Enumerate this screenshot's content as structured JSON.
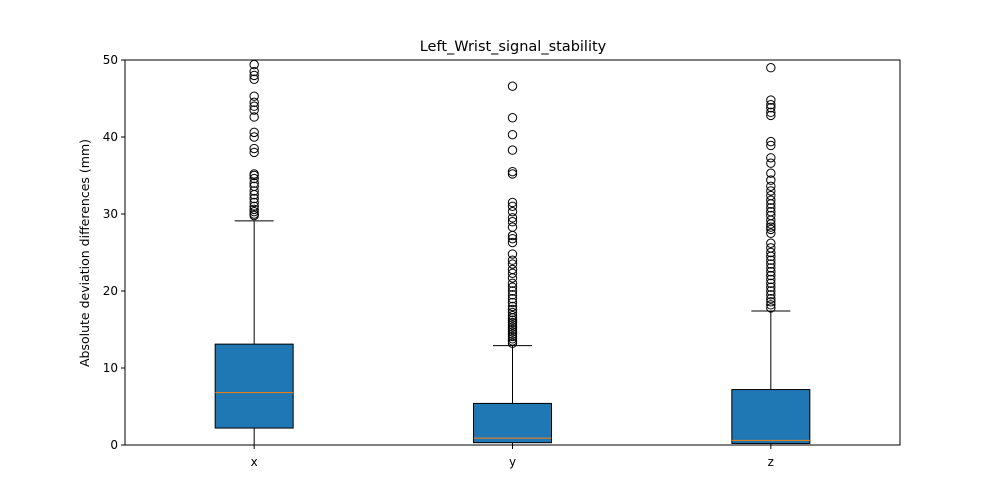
{
  "chart_data": {
    "type": "boxplot",
    "title": "Left_Wrist_signal_stability",
    "xlabel": "",
    "ylabel": "Absolute deviation differences (mm)",
    "ylim": [
      0,
      50
    ],
    "yticks": [
      0,
      10,
      20,
      30,
      40,
      50
    ],
    "grid": false,
    "legend": "none",
    "box_color": "#1f77b4",
    "median_color": "#ff7f0e",
    "categories": [
      "x",
      "y",
      "z"
    ],
    "boxes": [
      {
        "label": "x",
        "whisker_low": 0.0,
        "q1": 2.2,
        "median": 6.8,
        "q3": 13.1,
        "whisker_high": 29.1,
        "outliers": [
          29.8,
          30.0,
          30.3,
          30.6,
          31.0,
          31.5,
          32.0,
          32.5,
          33.0,
          33.6,
          34.0,
          34.6,
          35.0,
          35.2,
          38.0,
          38.5,
          40.0,
          40.6,
          42.6,
          43.5,
          44.0,
          44.5,
          45.3,
          47.5,
          48.0,
          48.5,
          49.4
        ]
      },
      {
        "label": "y",
        "whisker_low": 0.0,
        "q1": 0.3,
        "median": 0.9,
        "q3": 5.4,
        "whisker_high": 12.9,
        "outliers": [
          13.2,
          13.5,
          13.8,
          14.1,
          14.4,
          14.7,
          15.0,
          15.3,
          15.6,
          15.9,
          16.2,
          16.5,
          16.8,
          17.2,
          17.6,
          18.0,
          18.5,
          19.0,
          19.5,
          20.0,
          20.5,
          21.0,
          21.7,
          22.3,
          22.8,
          23.5,
          24.0,
          24.8,
          26.3,
          26.8,
          27.2,
          28.3,
          29.0,
          29.5,
          30.3,
          31.0,
          31.5,
          35.2,
          35.5,
          38.3,
          40.3,
          42.5,
          46.6
        ]
      },
      {
        "label": "z",
        "whisker_low": 0.0,
        "q1": 0.2,
        "median": 0.6,
        "q3": 7.2,
        "whisker_high": 17.4,
        "outliers": [
          17.8,
          18.2,
          18.6,
          19.0,
          19.5,
          20.0,
          20.5,
          21.0,
          21.5,
          22.0,
          22.5,
          23.0,
          23.5,
          24.0,
          24.5,
          25.0,
          25.6,
          26.2,
          27.5,
          28.0,
          28.3,
          28.7,
          29.2,
          29.8,
          30.3,
          30.8,
          31.3,
          31.8,
          32.4,
          33.0,
          33.6,
          34.4,
          35.3,
          36.6,
          37.3,
          38.9,
          39.4,
          42.8,
          43.2,
          43.8,
          44.2,
          44.8,
          49.0
        ]
      }
    ]
  }
}
